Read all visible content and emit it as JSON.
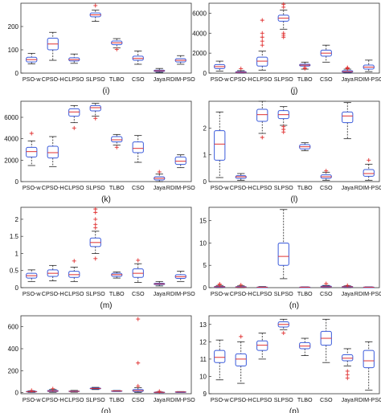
{
  "figure": {
    "colors": {
      "box": "#3b5bdb",
      "median": "#e03131",
      "outlier": "#e03131",
      "whisker": "#222222"
    }
  },
  "chart_data": [
    {
      "type": "box",
      "label": "(i)",
      "categories": [
        "PSO-w",
        "CPSO-H",
        "CLPSO",
        "SLPSO",
        "TLBO",
        "CSO",
        "Jaya",
        "RDIM-PSO"
      ],
      "ylim": [
        0,
        300
      ],
      "yticks": [
        "0",
        "100",
        "200"
      ],
      "series": [
        {
          "min": 40,
          "q1": 48,
          "median": 58,
          "q3": 68,
          "max": 85,
          "outliers": []
        },
        {
          "min": 55,
          "q1": 100,
          "median": 125,
          "q3": 150,
          "max": 175,
          "outliers": []
        },
        {
          "min": 42,
          "q1": 52,
          "median": 58,
          "q3": 66,
          "max": 82,
          "outliers": []
        },
        {
          "min": 222,
          "q1": 242,
          "median": 250,
          "q3": 258,
          "max": 270,
          "outliers": [
            290
          ]
        },
        {
          "min": 108,
          "q1": 122,
          "median": 130,
          "q3": 138,
          "max": 148,
          "outliers": [
            102
          ]
        },
        {
          "min": 38,
          "q1": 55,
          "median": 63,
          "q3": 73,
          "max": 95,
          "outliers": []
        },
        {
          "min": 3,
          "q1": 7,
          "median": 10,
          "q3": 13,
          "max": 20,
          "outliers": []
        },
        {
          "min": 38,
          "q1": 48,
          "median": 55,
          "q3": 62,
          "max": 75,
          "outliers": []
        }
      ]
    },
    {
      "type": "box",
      "label": "(j)",
      "categories": [
        "PSO-w",
        "CPSO-H",
        "CLPSO",
        "SLPSO",
        "TLBO",
        "CSO",
        "Jaya",
        "RDIM-PSO"
      ],
      "ylim": [
        0,
        7000
      ],
      "yticks": [
        "0",
        "2000",
        "4000",
        "6000"
      ],
      "series": [
        {
          "min": 200,
          "q1": 450,
          "median": 650,
          "q3": 850,
          "max": 1200,
          "outliers": []
        },
        {
          "min": 0,
          "q1": 30,
          "median": 80,
          "q3": 150,
          "max": 250,
          "outliers": [
            450
          ]
        },
        {
          "min": 300,
          "q1": 700,
          "median": 1200,
          "q3": 1600,
          "max": 2200,
          "outliers": [
            2800,
            3200,
            3600,
            4000,
            5300
          ]
        },
        {
          "min": 4400,
          "q1": 5200,
          "median": 5500,
          "q3": 5800,
          "max": 6300,
          "outliers": [
            3600,
            3800,
            4000,
            6600,
            6900
          ]
        },
        {
          "min": 400,
          "q1": 700,
          "median": 800,
          "q3": 900,
          "max": 1100,
          "outliers": [
            450,
            550
          ]
        },
        {
          "min": 1100,
          "q1": 1700,
          "median": 2000,
          "q3": 2300,
          "max": 2800,
          "outliers": []
        },
        {
          "min": 20,
          "q1": 80,
          "median": 150,
          "q3": 250,
          "max": 400,
          "outliers": [
            450,
            500,
            550
          ]
        },
        {
          "min": 150,
          "q1": 400,
          "median": 600,
          "q3": 800,
          "max": 1300,
          "outliers": []
        }
      ]
    },
    {
      "type": "box",
      "label": "(k)",
      "categories": [
        "PSO-w",
        "CPSO-H",
        "CLPSO",
        "SLPSO",
        "TLBO",
        "CSO",
        "Jaya",
        "RDIM-PSO"
      ],
      "ylim": [
        0,
        7500
      ],
      "yticks": [
        "0",
        "2000",
        "4000",
        "6000"
      ],
      "series": [
        {
          "min": 1500,
          "q1": 2300,
          "median": 2800,
          "q3": 3200,
          "max": 3800,
          "outliers": [
            4500
          ]
        },
        {
          "min": 1400,
          "q1": 2200,
          "median": 2700,
          "q3": 3300,
          "max": 4200,
          "outliers": []
        },
        {
          "min": 5500,
          "q1": 6100,
          "median": 6500,
          "q3": 6800,
          "max": 7100,
          "outliers": [
            5000
          ]
        },
        {
          "min": 6100,
          "q1": 6600,
          "median": 6900,
          "q3": 7100,
          "max": 7300,
          "outliers": [
            5900
          ]
        },
        {
          "min": 3400,
          "q1": 3700,
          "median": 3900,
          "q3": 4200,
          "max": 4400,
          "outliers": [
            3200
          ]
        },
        {
          "min": 1800,
          "q1": 2700,
          "median": 3100,
          "q3": 3700,
          "max": 4300,
          "outliers": []
        },
        {
          "min": 0,
          "q1": 150,
          "median": 300,
          "q3": 450,
          "max": 700,
          "outliers": [
            900
          ]
        },
        {
          "min": 1300,
          "q1": 1600,
          "median": 1900,
          "q3": 2300,
          "max": 2500,
          "outliers": []
        }
      ]
    },
    {
      "type": "box",
      "label": "(l)",
      "categories": [
        "PSO-w",
        "CPSO-H",
        "CLPSO",
        "SLPSO",
        "TLBO",
        "CSO",
        "Jaya",
        "RDIM-PSO"
      ],
      "ylim": [
        0,
        3
      ],
      "yticks": [
        "0",
        "1",
        "2"
      ],
      "series": [
        {
          "min": 0.15,
          "q1": 0.8,
          "median": 1.4,
          "q3": 1.9,
          "max": 2.6,
          "outliers": []
        },
        {
          "min": 0.05,
          "q1": 0.12,
          "median": 0.18,
          "q3": 0.22,
          "max": 0.3,
          "outliers": []
        },
        {
          "min": 1.8,
          "q1": 2.25,
          "median": 2.5,
          "q3": 2.7,
          "max": 3.0,
          "outliers": [
            1.65
          ]
        },
        {
          "min": 2.1,
          "q1": 2.35,
          "median": 2.5,
          "q3": 2.65,
          "max": 2.8,
          "outliers": [
            1.85,
            1.95,
            2.05
          ]
        },
        {
          "min": 1.15,
          "q1": 1.22,
          "median": 1.3,
          "q3": 1.38,
          "max": 1.45,
          "outliers": []
        },
        {
          "min": 0.05,
          "q1": 0.12,
          "median": 0.18,
          "q3": 0.25,
          "max": 0.35,
          "outliers": [
            0.4
          ]
        },
        {
          "min": 1.6,
          "q1": 2.2,
          "median": 2.45,
          "q3": 2.6,
          "max": 2.95,
          "outliers": []
        },
        {
          "min": 0.05,
          "q1": 0.2,
          "median": 0.3,
          "q3": 0.45,
          "max": 0.65,
          "outliers": [
            0.8
          ]
        }
      ]
    },
    {
      "type": "box",
      "label": "(m)",
      "categories": [
        "PSO-w",
        "CPSO-H",
        "CLPSO",
        "SLPSO",
        "TLBO",
        "CSO",
        "Jaya",
        "RDIM-PSO"
      ],
      "ylim": [
        0,
        2.35
      ],
      "yticks": [
        "0",
        "0.5",
        "1",
        "1.5",
        "2"
      ],
      "series": [
        {
          "min": 0.18,
          "q1": 0.28,
          "median": 0.35,
          "q3": 0.42,
          "max": 0.52,
          "outliers": []
        },
        {
          "min": 0.2,
          "q1": 0.33,
          "median": 0.42,
          "q3": 0.52,
          "max": 0.65,
          "outliers": []
        },
        {
          "min": 0.18,
          "q1": 0.3,
          "median": 0.38,
          "q3": 0.48,
          "max": 0.6,
          "outliers": [
            0.78
          ]
        },
        {
          "min": 1.0,
          "q1": 1.2,
          "median": 1.32,
          "q3": 1.45,
          "max": 1.65,
          "outliers": [
            0.85,
            1.75,
            1.85,
            2.0,
            2.2,
            2.3
          ]
        },
        {
          "min": 0.28,
          "q1": 0.33,
          "median": 0.38,
          "q3": 0.42,
          "max": 0.46,
          "outliers": []
        },
        {
          "min": 0.15,
          "q1": 0.3,
          "median": 0.42,
          "q3": 0.55,
          "max": 0.7,
          "outliers": [
            0.8
          ]
        },
        {
          "min": 0.05,
          "q1": 0.09,
          "median": 0.11,
          "q3": 0.13,
          "max": 0.18,
          "outliers": []
        },
        {
          "min": 0.18,
          "q1": 0.27,
          "median": 0.32,
          "q3": 0.38,
          "max": 0.48,
          "outliers": []
        }
      ]
    },
    {
      "type": "box",
      "label": "(n)",
      "categories": [
        "PSO-w",
        "CPSO-H",
        "CLPSO",
        "SLPSO",
        "TLBO",
        "CSO",
        "Jaya",
        "RDIM-PSO"
      ],
      "ylim": [
        0,
        18
      ],
      "yticks": [
        "0",
        "5",
        "10",
        "15"
      ],
      "series": [
        {
          "min": 0.0,
          "q1": 0.1,
          "median": 0.2,
          "q3": 0.3,
          "max": 0.5,
          "outliers": [
            0.8,
            0.6
          ]
        },
        {
          "min": 0.0,
          "q1": 0.1,
          "median": 0.15,
          "q3": 0.25,
          "max": 0.4,
          "outliers": [
            0.6
          ]
        },
        {
          "min": 0.0,
          "q1": 0.05,
          "median": 0.1,
          "q3": 0.15,
          "max": 0.25,
          "outliers": []
        },
        {
          "min": 2.0,
          "q1": 5.0,
          "median": 7.0,
          "q3": 10.0,
          "max": 17.5,
          "outliers": []
        },
        {
          "min": 0.0,
          "q1": 0.05,
          "median": 0.1,
          "q3": 0.15,
          "max": 0.2,
          "outliers": []
        },
        {
          "min": 0.0,
          "q1": 0.1,
          "median": 0.2,
          "q3": 0.35,
          "max": 0.5,
          "outliers": [
            0.9
          ]
        },
        {
          "min": 0.0,
          "q1": 0.1,
          "median": 0.2,
          "q3": 0.3,
          "max": 0.4,
          "outliers": [
            0.5
          ]
        },
        {
          "min": 0.0,
          "q1": 0.05,
          "median": 0.1,
          "q3": 0.15,
          "max": 0.2,
          "outliers": []
        }
      ]
    },
    {
      "type": "box",
      "label": "(o)",
      "categories": [
        "PSO-w",
        "CPSO-H",
        "CLPSO",
        "SLPSO",
        "TLBO",
        "CSO",
        "Jaya",
        "RDIM-PSO"
      ],
      "ylim": [
        -10,
        700
      ],
      "yticks": [
        "0",
        "200",
        "400",
        "600"
      ],
      "series": [
        {
          "min": 2,
          "q1": 6,
          "median": 9,
          "q3": 12,
          "max": 16,
          "outliers": [
            20
          ]
        },
        {
          "min": 3,
          "q1": 10,
          "median": 14,
          "q3": 20,
          "max": 28,
          "outliers": [
            35
          ]
        },
        {
          "min": 4,
          "q1": 9,
          "median": 12,
          "q3": 15,
          "max": 20,
          "outliers": []
        },
        {
          "min": 28,
          "q1": 34,
          "median": 38,
          "q3": 42,
          "max": 48,
          "outliers": []
        },
        {
          "min": 10,
          "q1": 13,
          "median": 15,
          "q3": 17,
          "max": 20,
          "outliers": []
        },
        {
          "min": 2,
          "q1": 10,
          "median": 18,
          "q3": 28,
          "max": 45,
          "outliers": [
            60,
            270,
            670
          ]
        },
        {
          "min": 0,
          "q1": 2,
          "median": 3,
          "q3": 5,
          "max": 7,
          "outliers": [
            12
          ]
        },
        {
          "min": 2,
          "q1": 4,
          "median": 6,
          "q3": 8,
          "max": 10,
          "outliers": []
        }
      ]
    },
    {
      "type": "box",
      "label": "(p)",
      "categories": [
        "PSO-w",
        "CPSO-H",
        "CLPSO",
        "SLPSO",
        "TLBO",
        "CSO",
        "Jaya",
        "RDIM-PSO"
      ],
      "ylim": [
        9,
        13.5
      ],
      "yticks": [
        "9",
        "10",
        "11",
        "12",
        "13"
      ],
      "series": [
        {
          "min": 9.8,
          "q1": 10.8,
          "median": 11.1,
          "q3": 11.5,
          "max": 12.1,
          "outliers": []
        },
        {
          "min": 9.6,
          "q1": 10.6,
          "median": 11.0,
          "q3": 11.3,
          "max": 12.0,
          "outliers": [
            12.3
          ]
        },
        {
          "min": 11.0,
          "q1": 11.5,
          "median": 11.8,
          "q3": 12.05,
          "max": 12.5,
          "outliers": []
        },
        {
          "min": 12.7,
          "q1": 12.85,
          "median": 13.0,
          "q3": 13.15,
          "max": 13.3,
          "outliers": [
            12.5
          ]
        },
        {
          "min": 11.2,
          "q1": 11.6,
          "median": 11.75,
          "q3": 11.95,
          "max": 12.2,
          "outliers": []
        },
        {
          "min": 10.8,
          "q1": 11.8,
          "median": 12.2,
          "q3": 12.6,
          "max": 13.3,
          "outliers": []
        },
        {
          "min": 10.6,
          "q1": 10.9,
          "median": 11.05,
          "q3": 11.25,
          "max": 11.6,
          "outliers": [
            9.9,
            10.1,
            10.3
          ]
        },
        {
          "min": 9.2,
          "q1": 10.5,
          "median": 10.9,
          "q3": 11.5,
          "max": 12.0,
          "outliers": []
        }
      ]
    }
  ]
}
